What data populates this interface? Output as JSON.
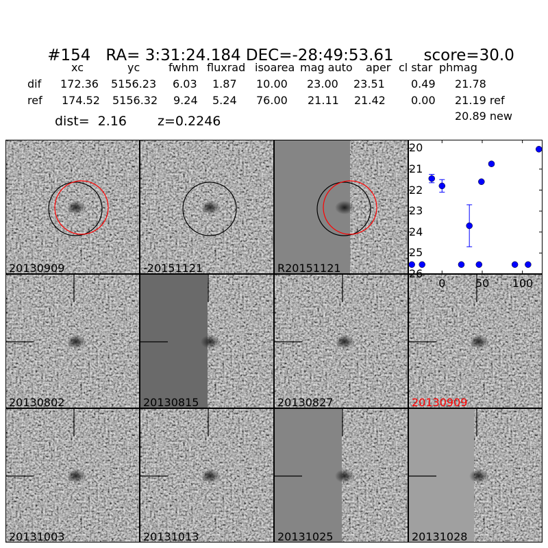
{
  "title": {
    "id": "#154",
    "ra": "RA= 3:31:24.184",
    "dec": "DEC=-28:49:53.61",
    "score": "score=30.0"
  },
  "table": {
    "headers": [
      "xc",
      "yc",
      "fwhm",
      "fluxrad",
      "isoarea",
      "mag auto",
      "aper",
      "cl star",
      "phmag"
    ],
    "rows": [
      {
        "label": "dif",
        "values": [
          "172.36",
          "5156.23",
          "6.03",
          "1.87",
          "10.00",
          "23.00",
          "23.51",
          "0.49",
          "21.78"
        ]
      },
      {
        "label": "ref",
        "values": [
          "174.52",
          "5156.32",
          "9.24",
          "5.24",
          "76.00",
          "21.11",
          "21.42",
          "0.00",
          "21.19 ref"
        ]
      }
    ],
    "extra_phmag": "20.89 new",
    "dist": "dist=  2.16",
    "z": "z=0.2246"
  },
  "stamps": [
    {
      "label": "20130909",
      "color": "#000000",
      "type": "circles"
    },
    {
      "label": "-20151121",
      "color": "#000000",
      "type": "circle-black"
    },
    {
      "label": "R20151121",
      "color": "#000000",
      "type": "circles-half"
    },
    {
      "label": "20130802",
      "color": "#000000",
      "type": "marker"
    },
    {
      "label": "20130815",
      "color": "#000000",
      "type": "marker-half"
    },
    {
      "label": "20130827",
      "color": "#000000",
      "type": "marker"
    },
    {
      "label": "20130909",
      "color": "#ff0000",
      "type": "marker"
    },
    {
      "label": "20131003",
      "color": "#000000",
      "type": "marker"
    },
    {
      "label": "20131013",
      "color": "#000000",
      "type": "marker"
    },
    {
      "label": "20131025",
      "color": "#000000",
      "type": "marker-half"
    },
    {
      "label": "20131028",
      "color": "#000000",
      "type": "marker-half"
    }
  ],
  "chart_data": {
    "type": "scatter",
    "xlim": [
      -42,
      125
    ],
    "ylim": [
      26,
      19.6
    ],
    "y_inverted": true,
    "x_ticks": [
      "0",
      "50",
      "100"
    ],
    "x_tick_values": [
      0,
      50,
      100
    ],
    "y_ticks": [
      "20",
      "21",
      "22",
      "23",
      "24",
      "25",
      "26"
    ],
    "y_tick_values": [
      20,
      21,
      22,
      23,
      24,
      25,
      26
    ],
    "marker_color": "#0000ff",
    "points": [
      {
        "x": -37.6,
        "y": 25.55,
        "err": 0.05
      },
      {
        "x": -24.8,
        "y": 25.55,
        "err": 0.05
      },
      {
        "x": -12.8,
        "y": 21.45,
        "err": 0.2
      },
      {
        "x": 0,
        "y": 21.8,
        "err": 0.3
      },
      {
        "x": 24,
        "y": 25.55,
        "err": 0.05
      },
      {
        "x": 34,
        "y": 23.7,
        "err": 1.0
      },
      {
        "x": 46,
        "y": 25.55,
        "err": 0.05
      },
      {
        "x": 49,
        "y": 21.6,
        "err": 0
      },
      {
        "x": 61.5,
        "y": 20.75,
        "err": 0.08
      },
      {
        "x": 90.6,
        "y": 25.55,
        "err": 0.05
      },
      {
        "x": 107,
        "y": 25.55,
        "err": 0.05
      },
      {
        "x": 120.5,
        "y": 20.05,
        "err": 0
      }
    ]
  }
}
